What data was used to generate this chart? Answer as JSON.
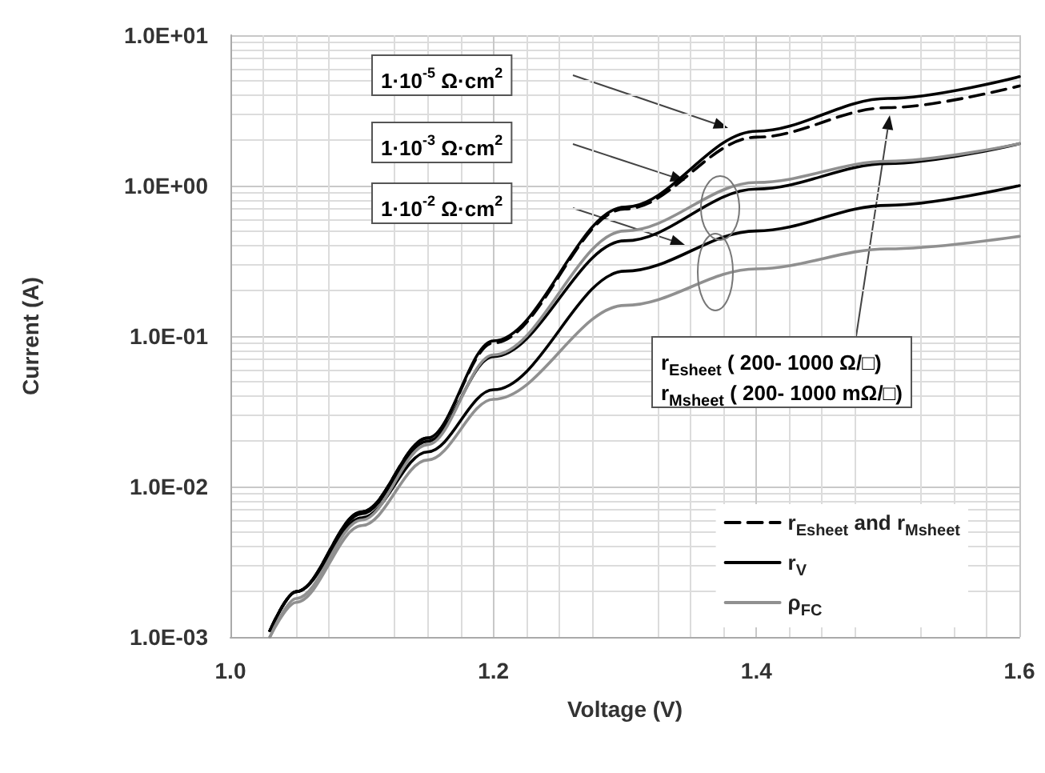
{
  "chart_data": {
    "type": "line",
    "xlabel": "Voltage (V)",
    "ylabel": "Current (A)",
    "x": [
      1.03,
      1.05,
      1.1,
      1.15,
      1.2,
      1.3,
      1.4,
      1.5,
      1.6
    ],
    "series": [
      {
        "name": "r$_{Esheet}$ and r$_{Msheet}$",
        "color": "#000000",
        "line_style": "dashed",
        "values": [
          0.0011,
          0.002,
          0.0068,
          0.021,
          0.09,
          0.7,
          2.1,
          3.3,
          4.6
        ]
      },
      {
        "name": "r$_{V}$",
        "color": "#000000",
        "values": [
          0.0011,
          0.002,
          0.0068,
          0.021,
          0.093,
          0.72,
          2.3,
          3.8,
          5.3
        ]
      },
      {
        "color": "#000000",
        "values": [
          0.0011,
          0.002,
          0.0066,
          0.02,
          0.073,
          0.43,
          0.95,
          1.4,
          1.9
        ]
      },
      {
        "color": "#000000",
        "values": [
          0.0011,
          0.002,
          0.0062,
          0.017,
          0.044,
          0.27,
          0.5,
          0.74,
          1.0
        ]
      },
      {
        "name": "ρ$_{FC}$",
        "color": "#909090",
        "values": [
          0.001,
          0.0018,
          0.006,
          0.019,
          0.075,
          0.5,
          1.05,
          1.45,
          1.9
        ]
      },
      {
        "color": "#909090",
        "values": [
          0.001,
          0.0017,
          0.0055,
          0.015,
          0.038,
          0.16,
          0.28,
          0.38,
          0.46
        ]
      }
    ],
    "xlim": [
      1.0,
      1.6
    ],
    "xticks": [
      {
        "value": 1.0,
        "label": "1.0"
      },
      {
        "value": 1.2,
        "label": "1.2"
      },
      {
        "value": 1.4,
        "label": "1.4"
      },
      {
        "value": 1.6,
        "label": "1.6"
      }
    ],
    "ylim": [
      0.001,
      10
    ],
    "log": "y",
    "yticks": [
      {
        "value": 0.001,
        "label": "1.0E-03"
      },
      {
        "value": 0.01,
        "label": "1.0E-02"
      },
      {
        "value": 0.1,
        "label": "1.0E-01"
      },
      {
        "value": 1,
        "label": "1.0E+00"
      },
      {
        "value": 10,
        "label": "1.0E+01"
      }
    ],
    "grid": true,
    "legend": "bottom right",
    "marker": "none",
    "annotations": [
      "1·10$^{-5}$ Ω·cm$^{2}$",
      "1·10$^{-3}$ Ω·cm$^{2}$",
      "1·10$^{-2}$ Ω·cm$^{2}$",
      "r$_{Esheet}$ ( 200- 1000 Ω/□)\nr$_{Msheet}$ ( 200- 1000 mΩ/□)"
    ]
  }
}
